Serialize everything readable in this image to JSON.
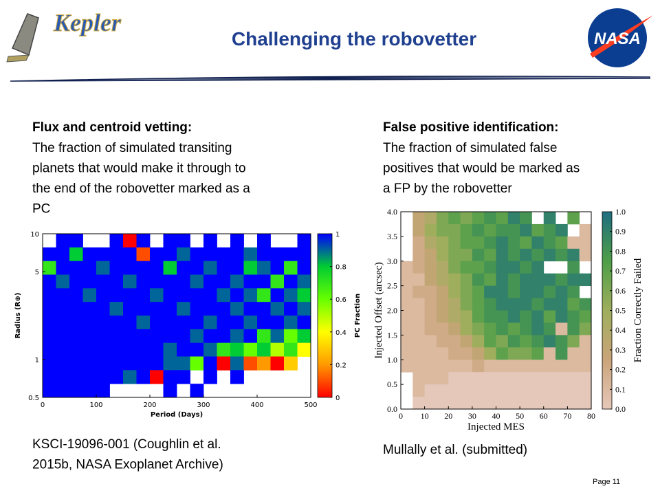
{
  "header": {
    "title": "Challenging the robovetter",
    "logo_left": "Kepler",
    "logo_right": "NASA"
  },
  "left": {
    "heading": "Flux and centroid vetting:",
    "text": [
      "The fraction of simulated transiting",
      "planets that would make it through to",
      "the end of the robovetter marked as a",
      "PC"
    ],
    "caption": [
      "KSCI-19096-001 (Coughlin et al.",
      "2015b, NASA Exoplanet Archive)"
    ]
  },
  "right": {
    "heading": "False positive identification:",
    "text": [
      "The fraction of simulated false",
      "positives that would be marked as",
      "a FP by the robovetter"
    ],
    "caption": [
      "Mullally et al. (submitted)"
    ]
  },
  "page": "Page 11",
  "chart_data": [
    {
      "type": "heatmap",
      "x_label": "Period (Days)",
      "y_label": "Radius (R⊕)",
      "xlim": [
        0,
        500
      ],
      "xticks": [
        0,
        100,
        200,
        300,
        400,
        500
      ],
      "ylim": [
        0.5,
        10
      ],
      "yticks": [
        0.5,
        1,
        5,
        10
      ],
      "ylog": true,
      "colormap": [
        "#ff0000",
        "#ff9900",
        "#ffff00",
        "#66ff00",
        "#00cc33",
        "#0000ff"
      ],
      "colorbar": {
        "label": "PC Fraction",
        "lim": [
          0,
          1
        ],
        "ticks": [
          0,
          0.2,
          0.4,
          0.6,
          0.8,
          1
        ]
      },
      "values": [
        [
          null,
          1,
          1,
          null,
          null,
          1,
          0,
          1,
          null,
          1,
          1,
          null,
          1,
          null,
          1,
          null,
          1,
          null,
          null,
          1
        ],
        [
          1,
          1,
          0.8,
          1,
          1,
          1,
          1,
          0.1,
          1,
          1,
          0.9,
          1,
          1,
          1,
          1,
          0.9,
          1,
          1,
          1,
          1
        ],
        [
          0.7,
          1,
          1,
          1,
          0.9,
          1,
          1,
          1,
          1,
          0.8,
          1,
          1,
          0.9,
          1,
          1,
          0.8,
          0.9,
          1,
          0.7,
          1
        ],
        [
          1,
          0.9,
          1,
          1,
          1,
          1,
          0.9,
          1,
          1,
          1,
          1,
          0.9,
          1,
          1,
          0.9,
          1,
          1,
          0.7,
          1,
          0.9
        ],
        [
          1,
          1,
          1,
          0.9,
          1,
          1,
          1,
          1,
          0.9,
          1,
          1,
          1,
          1,
          0.9,
          1,
          0.9,
          0.7,
          1,
          0.9,
          0.8
        ],
        [
          1,
          1,
          1,
          1,
          1,
          0.9,
          1,
          1,
          1,
          1,
          0.9,
          1,
          1,
          1,
          0.9,
          1,
          1,
          0.9,
          1,
          0.9
        ],
        [
          1,
          1,
          1,
          1,
          1,
          1,
          1,
          0.9,
          1,
          1,
          1,
          1,
          0.9,
          1,
          1,
          0.9,
          1,
          1,
          0.9,
          1
        ],
        [
          1,
          1,
          1,
          1,
          1,
          1,
          1,
          1,
          1,
          1,
          1,
          0.9,
          1,
          1,
          0.9,
          1,
          0.7,
          0.9,
          0.6,
          0.8
        ],
        [
          1,
          1,
          1,
          1,
          1,
          1,
          1,
          1,
          1,
          0.9,
          1,
          1,
          0.9,
          0.7,
          0.8,
          0.6,
          0.8,
          0.5,
          0.7,
          0.4
        ],
        [
          1,
          1,
          1,
          1,
          1,
          1,
          1,
          1,
          1,
          0.9,
          0.9,
          0.6,
          1,
          0,
          0.9,
          0.1,
          0.2,
          0,
          0.3,
          null
        ],
        [
          1,
          1,
          1,
          1,
          1,
          1,
          0.9,
          1,
          0,
          1,
          1,
          null,
          1,
          null,
          1,
          null,
          null,
          null,
          null,
          null
        ],
        [
          1,
          1,
          1,
          1,
          1,
          null,
          null,
          null,
          null,
          1,
          null,
          1,
          null,
          null,
          null,
          null,
          null,
          null,
          null,
          null
        ]
      ]
    },
    {
      "type": "heatmap",
      "x_label": "Injected MES",
      "y_label": "Injected Offset (arcsec)",
      "xlim": [
        0,
        80
      ],
      "xticks": [
        0,
        10,
        20,
        30,
        40,
        50,
        60,
        70,
        80
      ],
      "ylim": [
        0,
        4
      ],
      "yticks": [
        {
          "value": 0,
          "label": "0.0"
        },
        0.5,
        {
          "value": 1,
          "label": "1.0"
        },
        1.5,
        {
          "value": 2,
          "label": "2.0"
        },
        2.5,
        {
          "value": 3,
          "label": "3.0"
        },
        3.5,
        {
          "value": 4,
          "label": "4.0"
        }
      ],
      "colormap": [
        "#e6c8ba",
        "#caa47a",
        "#9fae5c",
        "#4e9e48",
        "#1f6e80"
      ],
      "colorbar": {
        "label": "Fraction Correctly Failed",
        "lim": [
          0,
          1
        ],
        "ticks": [
          {
            "value": 0,
            "label": "0.0"
          },
          0.1,
          0.2,
          0.3,
          0.4,
          0.5,
          0.6,
          0.7,
          0.8,
          0.9,
          {
            "value": 1,
            "label": "1.0"
          }
        ]
      },
      "values": [
        [
          null,
          0.3,
          0.4,
          0.6,
          0.7,
          0.6,
          0.7,
          0.8,
          0.7,
          0.9,
          0.8,
          null,
          0.9,
          null,
          0.7,
          null
        ],
        [
          null,
          0.3,
          0.5,
          0.6,
          0.6,
          0.7,
          0.8,
          0.7,
          0.8,
          0.8,
          0.9,
          0.7,
          0.8,
          0.9,
          null,
          0.1
        ],
        [
          null,
          0.2,
          0.4,
          0.5,
          0.6,
          0.7,
          0.7,
          0.8,
          0.9,
          0.8,
          0.7,
          0.9,
          0.8,
          0.7,
          0.1,
          0.1
        ],
        [
          null,
          0.2,
          0.3,
          0.5,
          0.6,
          0.6,
          0.8,
          0.7,
          0.9,
          0.8,
          0.9,
          0.8,
          0.9,
          0.8,
          0.9,
          0.1
        ],
        [
          0.1,
          0.2,
          0.3,
          0.4,
          0.6,
          0.7,
          0.7,
          0.8,
          0.9,
          0.9,
          0.8,
          0.9,
          null,
          null,
          0.8,
          null
        ],
        [
          0.1,
          0.1,
          0.3,
          0.4,
          0.5,
          0.6,
          0.8,
          0.7,
          0.9,
          0.8,
          0.9,
          0.9,
          0.9,
          0.8,
          0.9,
          0.9
        ],
        [
          0.1,
          0.2,
          0.2,
          0.3,
          0.5,
          0.6,
          0.7,
          0.9,
          0.9,
          0.8,
          0.9,
          0.9,
          0.8,
          0.9,
          0.8,
          null
        ],
        [
          0.1,
          0.1,
          0.2,
          0.3,
          0.4,
          0.6,
          0.7,
          0.8,
          0.9,
          0.9,
          0.9,
          0.8,
          0.9,
          0.9,
          0.7,
          0.8
        ],
        [
          0.1,
          0.1,
          0.2,
          0.3,
          0.4,
          0.5,
          0.7,
          0.8,
          0.8,
          0.9,
          0.8,
          0.9,
          0.7,
          0.9,
          0.8,
          0.7
        ],
        [
          0.1,
          0.1,
          0.2,
          0.2,
          0.3,
          0.5,
          0.6,
          0.7,
          0.8,
          0.7,
          0.8,
          0.9,
          0.8,
          0.1,
          0.8,
          0.6
        ],
        [
          0.1,
          0.1,
          0.1,
          0.2,
          0.2,
          0.3,
          0.5,
          0.7,
          0.6,
          0.8,
          0.7,
          0.8,
          0.9,
          0.8,
          0.6,
          0.1
        ],
        [
          0.1,
          0.1,
          0.1,
          0.1,
          0.2,
          0.2,
          0.3,
          0.5,
          0.7,
          0.6,
          0.6,
          0.7,
          0.1,
          0.8,
          0.1,
          0.1
        ],
        [
          0.1,
          0.1,
          0.1,
          0.1,
          0.1,
          0.1,
          0.2,
          0.1,
          0.1,
          0.1,
          0.1,
          0.1,
          0.1,
          0.1,
          0.1,
          0.1
        ],
        [
          null,
          0.1,
          0.1,
          0.1,
          0,
          0,
          0,
          0,
          0,
          0,
          0,
          0,
          0,
          0,
          0,
          0
        ],
        [
          null,
          0.1,
          0,
          0,
          0,
          0,
          0,
          0,
          0,
          0,
          0,
          0,
          0,
          0,
          0,
          0
        ],
        [
          null,
          0,
          0,
          0,
          0,
          0,
          0,
          0,
          0,
          0,
          0,
          0,
          0,
          0,
          0,
          0
        ]
      ]
    }
  ]
}
